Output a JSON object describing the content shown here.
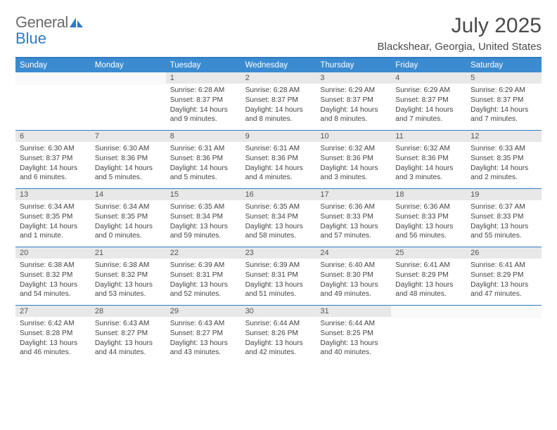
{
  "logo": {
    "line1": "General",
    "line2": "Blue"
  },
  "title": "July 2025",
  "location": "Blackshear, Georgia, United States",
  "colors": {
    "header_bar": "#3b8bd1",
    "border": "#2f7bc4",
    "daynum_bg": "#e8e8e8",
    "logo_gray": "#6b6b6b",
    "logo_blue": "#2f7bc4",
    "text": "#444"
  },
  "dayNames": [
    "Sunday",
    "Monday",
    "Tuesday",
    "Wednesday",
    "Thursday",
    "Friday",
    "Saturday"
  ],
  "weeks": [
    [
      {
        "n": "",
        "sunrise": "",
        "sunset": "",
        "daylight": ""
      },
      {
        "n": "",
        "sunrise": "",
        "sunset": "",
        "daylight": ""
      },
      {
        "n": "1",
        "sunrise": "6:28 AM",
        "sunset": "8:37 PM",
        "daylight": "14 hours and 9 minutes."
      },
      {
        "n": "2",
        "sunrise": "6:28 AM",
        "sunset": "8:37 PM",
        "daylight": "14 hours and 8 minutes."
      },
      {
        "n": "3",
        "sunrise": "6:29 AM",
        "sunset": "8:37 PM",
        "daylight": "14 hours and 8 minutes."
      },
      {
        "n": "4",
        "sunrise": "6:29 AM",
        "sunset": "8:37 PM",
        "daylight": "14 hours and 7 minutes."
      },
      {
        "n": "5",
        "sunrise": "6:29 AM",
        "sunset": "8:37 PM",
        "daylight": "14 hours and 7 minutes."
      }
    ],
    [
      {
        "n": "6",
        "sunrise": "6:30 AM",
        "sunset": "8:37 PM",
        "daylight": "14 hours and 6 minutes."
      },
      {
        "n": "7",
        "sunrise": "6:30 AM",
        "sunset": "8:36 PM",
        "daylight": "14 hours and 5 minutes."
      },
      {
        "n": "8",
        "sunrise": "6:31 AM",
        "sunset": "8:36 PM",
        "daylight": "14 hours and 5 minutes."
      },
      {
        "n": "9",
        "sunrise": "6:31 AM",
        "sunset": "8:36 PM",
        "daylight": "14 hours and 4 minutes."
      },
      {
        "n": "10",
        "sunrise": "6:32 AM",
        "sunset": "8:36 PM",
        "daylight": "14 hours and 3 minutes."
      },
      {
        "n": "11",
        "sunrise": "6:32 AM",
        "sunset": "8:36 PM",
        "daylight": "14 hours and 3 minutes."
      },
      {
        "n": "12",
        "sunrise": "6:33 AM",
        "sunset": "8:35 PM",
        "daylight": "14 hours and 2 minutes."
      }
    ],
    [
      {
        "n": "13",
        "sunrise": "6:34 AM",
        "sunset": "8:35 PM",
        "daylight": "14 hours and 1 minute."
      },
      {
        "n": "14",
        "sunrise": "6:34 AM",
        "sunset": "8:35 PM",
        "daylight": "14 hours and 0 minutes."
      },
      {
        "n": "15",
        "sunrise": "6:35 AM",
        "sunset": "8:34 PM",
        "daylight": "13 hours and 59 minutes."
      },
      {
        "n": "16",
        "sunrise": "6:35 AM",
        "sunset": "8:34 PM",
        "daylight": "13 hours and 58 minutes."
      },
      {
        "n": "17",
        "sunrise": "6:36 AM",
        "sunset": "8:33 PM",
        "daylight": "13 hours and 57 minutes."
      },
      {
        "n": "18",
        "sunrise": "6:36 AM",
        "sunset": "8:33 PM",
        "daylight": "13 hours and 56 minutes."
      },
      {
        "n": "19",
        "sunrise": "6:37 AM",
        "sunset": "8:33 PM",
        "daylight": "13 hours and 55 minutes."
      }
    ],
    [
      {
        "n": "20",
        "sunrise": "6:38 AM",
        "sunset": "8:32 PM",
        "daylight": "13 hours and 54 minutes."
      },
      {
        "n": "21",
        "sunrise": "6:38 AM",
        "sunset": "8:32 PM",
        "daylight": "13 hours and 53 minutes."
      },
      {
        "n": "22",
        "sunrise": "6:39 AM",
        "sunset": "8:31 PM",
        "daylight": "13 hours and 52 minutes."
      },
      {
        "n": "23",
        "sunrise": "6:39 AM",
        "sunset": "8:31 PM",
        "daylight": "13 hours and 51 minutes."
      },
      {
        "n": "24",
        "sunrise": "6:40 AM",
        "sunset": "8:30 PM",
        "daylight": "13 hours and 49 minutes."
      },
      {
        "n": "25",
        "sunrise": "6:41 AM",
        "sunset": "8:29 PM",
        "daylight": "13 hours and 48 minutes."
      },
      {
        "n": "26",
        "sunrise": "6:41 AM",
        "sunset": "8:29 PM",
        "daylight": "13 hours and 47 minutes."
      }
    ],
    [
      {
        "n": "27",
        "sunrise": "6:42 AM",
        "sunset": "8:28 PM",
        "daylight": "13 hours and 46 minutes."
      },
      {
        "n": "28",
        "sunrise": "6:43 AM",
        "sunset": "8:27 PM",
        "daylight": "13 hours and 44 minutes."
      },
      {
        "n": "29",
        "sunrise": "6:43 AM",
        "sunset": "8:27 PM",
        "daylight": "13 hours and 43 minutes."
      },
      {
        "n": "30",
        "sunrise": "6:44 AM",
        "sunset": "8:26 PM",
        "daylight": "13 hours and 42 minutes."
      },
      {
        "n": "31",
        "sunrise": "6:44 AM",
        "sunset": "8:25 PM",
        "daylight": "13 hours and 40 minutes."
      },
      {
        "n": "",
        "sunrise": "",
        "sunset": "",
        "daylight": ""
      },
      {
        "n": "",
        "sunrise": "",
        "sunset": "",
        "daylight": ""
      }
    ]
  ],
  "labels": {
    "sunrise": "Sunrise:",
    "sunset": "Sunset:",
    "daylight": "Daylight:"
  }
}
